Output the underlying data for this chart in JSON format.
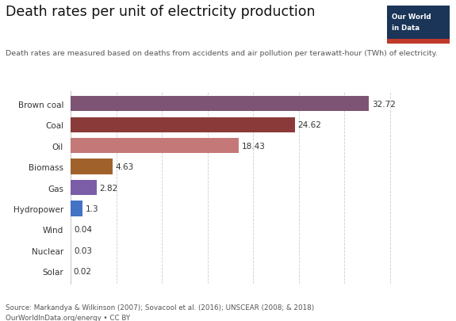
{
  "title": "Death rates per unit of electricity production",
  "subtitle": "Death rates are measured based on deaths from accidents and air pollution per terawatt-hour (TWh) of electricity.",
  "categories": [
    "Brown coal",
    "Coal",
    "Oil",
    "Biomass",
    "Gas",
    "Hydropower",
    "Wind",
    "Nuclear",
    "Solar"
  ],
  "values": [
    32.72,
    24.62,
    18.43,
    4.63,
    2.82,
    1.3,
    0.04,
    0.03,
    0.02
  ],
  "colors": [
    "#7d5474",
    "#8b3a3a",
    "#c47878",
    "#a0622a",
    "#7b5ea7",
    "#4472c4",
    "#d0d0d0",
    "#d0d0d0",
    "#d0d0d0"
  ],
  "source_line1": "Source: Markandya & Wilkinson (2007); Sovacool et al. (2016); UNSCEAR (2008; & 2018)",
  "source_line2": "OurWorldInData.org/energy • CC BY",
  "logo_bg": "#1a3557",
  "logo_red": "#c0392b",
  "logo_line1": "Our World",
  "logo_line2": "in Data",
  "xlim": [
    0,
    36
  ],
  "background_color": "#ffffff",
  "bar_height": 0.72
}
